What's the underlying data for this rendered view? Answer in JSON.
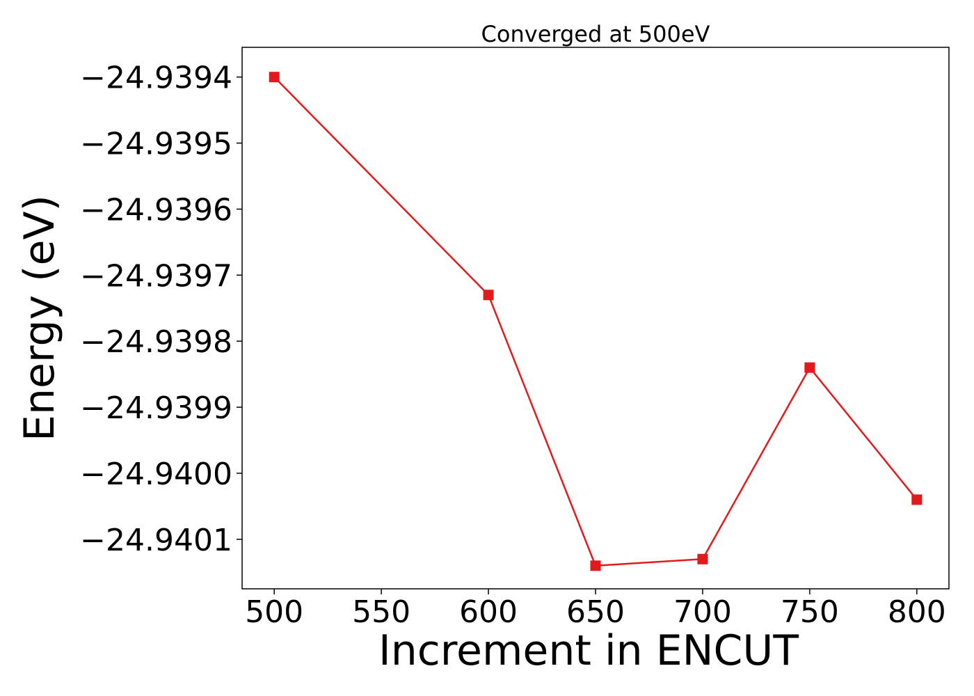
{
  "chart_data": {
    "type": "line",
    "title": "Converged at 500eV",
    "xlabel": "Increment in ENCUT",
    "ylabel": "Energy (eV)",
    "x": [
      500,
      600,
      650,
      700,
      750,
      800
    ],
    "series": [
      {
        "values": [
          -24.9394,
          -24.93973,
          -24.94014,
          -24.94013,
          -24.93984,
          -24.94004
        ],
        "color": "#e31a1c",
        "marker": "square"
      }
    ],
    "xlim": [
      485,
      815
    ],
    "ylim": [
      -24.940175,
      -24.939355
    ],
    "xticks": [
      500,
      550,
      600,
      650,
      700,
      750,
      800
    ],
    "xtick_labels": [
      "500",
      "550",
      "600",
      "650",
      "700",
      "750",
      "800"
    ],
    "yticks": [
      -24.9401,
      -24.94,
      -24.9399,
      -24.9398,
      -24.9397,
      -24.9396,
      -24.9395,
      -24.9394
    ],
    "ytick_labels": [
      "−24.9401",
      "−24.9400",
      "−24.9399",
      "−24.9398",
      "−24.9397",
      "−24.9396",
      "−24.9395",
      "−24.9394"
    ],
    "grid": false,
    "legend": "none"
  }
}
